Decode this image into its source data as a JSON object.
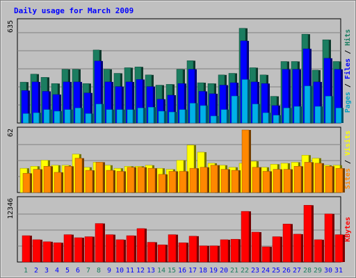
{
  "chart_data": [
    {
      "panel": "hits-files-pages",
      "type": "bar",
      "title": "Daily usage for March 2009",
      "y_max_label": "635",
      "ylim": [
        0,
        635
      ],
      "grid": true,
      "side_labels": [
        {
          "text": "Pages",
          "color": "#00a0c0"
        },
        {
          "text": "Files",
          "color": "#0000ff"
        },
        {
          "text": "Hits",
          "color": "#1b7d60"
        }
      ],
      "categories": [
        "1",
        "2",
        "3",
        "4",
        "5",
        "6",
        "7",
        "8",
        "9",
        "10",
        "11",
        "12",
        "13",
        "14",
        "15",
        "16",
        "17",
        "18",
        "19",
        "20",
        "21",
        "22",
        "23",
        "24",
        "25",
        "26",
        "27",
        "28",
        "29",
        "30",
        "31"
      ],
      "category_colors": [
        "#1b7d60",
        "#0000ff",
        "#0000ff",
        "#0000ff",
        "#0000ff",
        "#0000ff",
        "#1b7d60",
        "#1b7d60",
        "#0000ff",
        "#0000ff",
        "#0000ff",
        "#0000ff",
        "#0000ff",
        "#1b7d60",
        "#1b7d60",
        "#0000ff",
        "#0000ff",
        "#0000ff",
        "#0000ff",
        "#0000ff",
        "#1b7d60",
        "#1b7d60",
        "#0000ff",
        "#0000ff",
        "#0000ff",
        "#0000ff",
        "#0000ff",
        "#1b7d60",
        "#1b7d60",
        "#0000ff",
        "#0000ff"
      ],
      "series": [
        {
          "name": "Hits",
          "color": "#1b7d60",
          "values": [
            256,
            306,
            286,
            247,
            336,
            336,
            247,
            457,
            336,
            311,
            346,
            351,
            301,
            237,
            242,
            336,
            390,
            252,
            247,
            301,
            311,
            593,
            346,
            301,
            167,
            385,
            385,
            556,
            331,
            521,
            385
          ]
        },
        {
          "name": "Files",
          "color": "#0000ff",
          "values": [
            203,
            257,
            198,
            178,
            257,
            257,
            188,
            388,
            257,
            228,
            257,
            272,
            228,
            149,
            174,
            247,
            336,
            198,
            183,
            237,
            252,
            514,
            257,
            247,
            109,
            336,
            336,
            464,
            257,
            405,
            336
          ]
        },
        {
          "name": "Pages",
          "color": "#00b0e8",
          "values": [
            59,
            64,
            84,
            74,
            84,
            94,
            59,
            119,
            84,
            84,
            84,
            94,
            99,
            74,
            69,
            84,
            124,
            109,
            44,
            84,
            169,
            272,
            119,
            64,
            49,
            94,
            104,
            232,
            104,
            168,
            94
          ]
        }
      ]
    },
    {
      "panel": "visits-sites",
      "type": "bar",
      "y_max_label": "62",
      "ylim": [
        0,
        62
      ],
      "grid": true,
      "side_labels": [
        {
          "text": "Sites",
          "color": "#ff8800"
        },
        {
          "text": "Visits",
          "color": "#ffff00"
        }
      ],
      "series": [
        {
          "name": "Visits",
          "color": "#ffff00",
          "values": [
            24,
            26,
            32,
            27,
            27,
            38,
            25,
            30,
            27,
            24,
            26,
            26,
            27,
            24,
            23,
            32,
            47,
            40,
            29,
            27,
            25,
            29,
            31,
            25,
            28,
            29,
            30,
            37,
            34,
            27,
            27
          ]
        },
        {
          "name": "Sites",
          "color": "#ff8800",
          "values": [
            19,
            23,
            26,
            20,
            26,
            34,
            22,
            30,
            22,
            21,
            25,
            25,
            24,
            18,
            21,
            21,
            24,
            25,
            27,
            23,
            22,
            62,
            25,
            21,
            23,
            23,
            26,
            30,
            29,
            26,
            24
          ]
        }
      ]
    },
    {
      "panel": "kbytes",
      "type": "bar",
      "y_max_label": "12346",
      "ylim": [
        0,
        12346
      ],
      "grid": true,
      "side_labels": [
        {
          "text": "KBytes",
          "color": "#ff0000"
        }
      ],
      "series": [
        {
          "name": "KBytes",
          "color": "#ff0000",
          "values": [
            5200,
            4400,
            4000,
            3800,
            5400,
            4800,
            5000,
            7600,
            5400,
            4400,
            5200,
            6600,
            3900,
            3400,
            5400,
            3800,
            5100,
            3200,
            3200,
            4400,
            4500,
            10000,
            5900,
            3000,
            5000,
            7500,
            5500,
            11200,
            4400,
            9500,
            5400
          ]
        }
      ]
    }
  ]
}
